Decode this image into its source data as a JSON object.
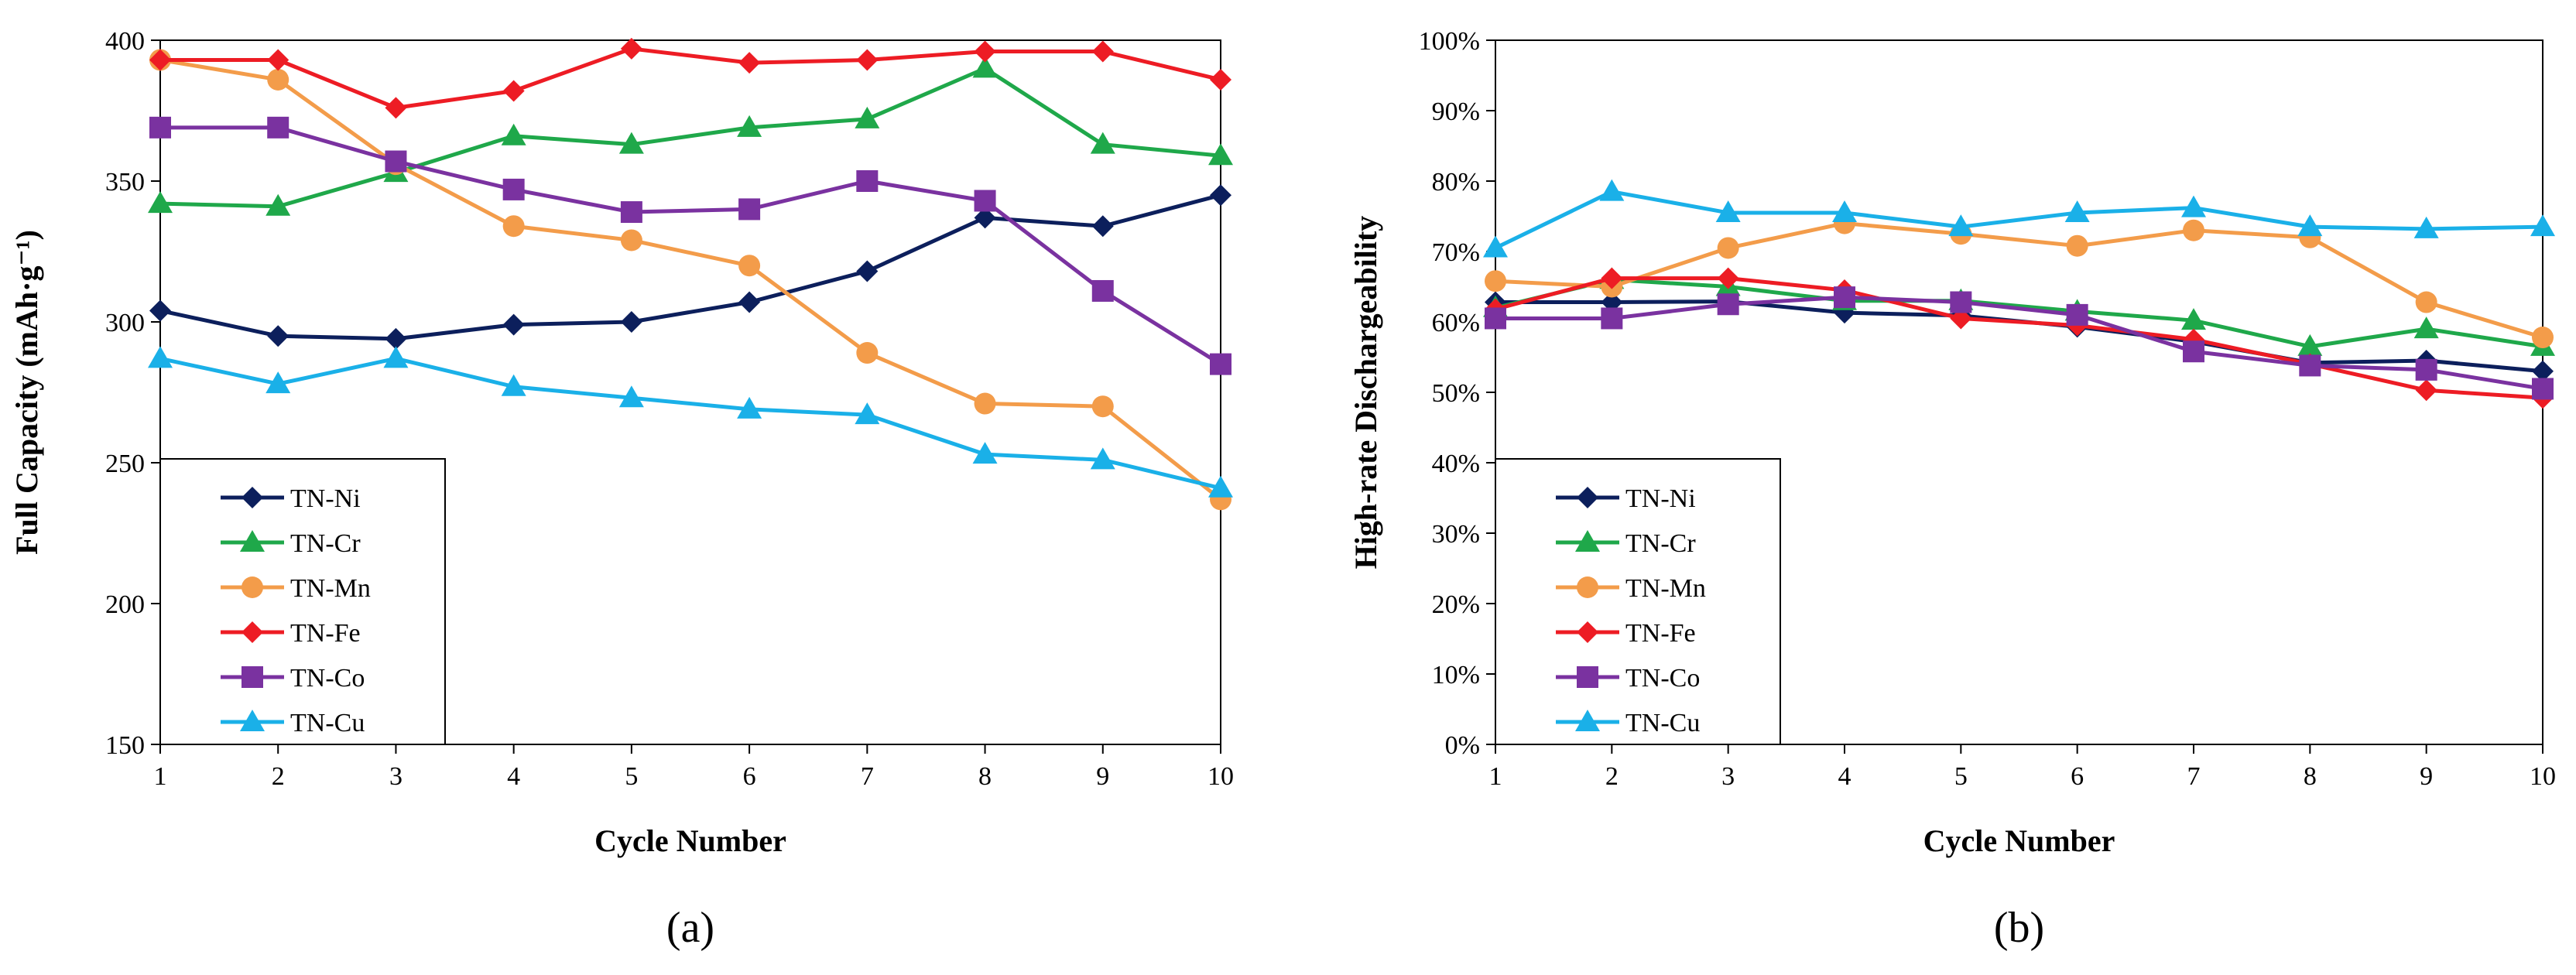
{
  "chart_data": [
    {
      "type": "line",
      "panel_label": "(a)",
      "xlabel": "Cycle Number",
      "ylabel": "Full Capacity (mAh·g⁻¹)",
      "x": [
        1,
        2,
        3,
        4,
        5,
        6,
        7,
        8,
        9,
        10
      ],
      "xlim": [
        1,
        10
      ],
      "ylim": [
        150,
        400
      ],
      "y_ticks": [
        150,
        200,
        250,
        300,
        350,
        400
      ],
      "y_tick_labels": [
        "150",
        "200",
        "250",
        "300",
        "350",
        "400"
      ],
      "grid": false,
      "legend_position": "bottom-left",
      "series": [
        {
          "name": "TN-Ni",
          "color": "#0c1f5c",
          "marker": "diamond",
          "values": [
            304,
            295,
            294,
            299,
            300,
            307,
            318,
            337,
            334,
            345
          ]
        },
        {
          "name": "TN-Cr",
          "color": "#1fa84a",
          "marker": "triangle",
          "values": [
            342,
            341,
            353,
            366,
            363,
            369,
            372,
            390,
            363,
            359
          ]
        },
        {
          "name": "TN-Mn",
          "color": "#f39c4a",
          "marker": "circle",
          "values": [
            393,
            386,
            356,
            334,
            329,
            320,
            289,
            271,
            270,
            237
          ]
        },
        {
          "name": "TN-Fe",
          "color": "#ed1c24",
          "marker": "diamond",
          "values": [
            393,
            393,
            376,
            382,
            397,
            392,
            393,
            396,
            396,
            386
          ]
        },
        {
          "name": "TN-Co",
          "color": "#7a32a0",
          "marker": "square",
          "values": [
            369,
            369,
            357,
            347,
            339,
            340,
            350,
            343,
            311,
            285
          ]
        },
        {
          "name": "TN-Cu",
          "color": "#1ab0e8",
          "marker": "triangle",
          "values": [
            287,
            278,
            287,
            277,
            273,
            269,
            267,
            253,
            251,
            241
          ]
        }
      ]
    },
    {
      "type": "line",
      "panel_label": "(b)",
      "xlabel": "Cycle Number",
      "ylabel": "High-rate Dischargeability",
      "x": [
        1,
        2,
        3,
        4,
        5,
        6,
        7,
        8,
        9,
        10
      ],
      "xlim": [
        1,
        10
      ],
      "ylim": [
        0,
        100
      ],
      "y_ticks": [
        0,
        10,
        20,
        30,
        40,
        50,
        60,
        70,
        80,
        90,
        100
      ],
      "y_tick_labels": [
        "0%",
        "10%",
        "20%",
        "30%",
        "40%",
        "50%",
        "60%",
        "70%",
        "80%",
        "90%",
        "100%"
      ],
      "grid": false,
      "legend_position": "bottom-left",
      "series": [
        {
          "name": "TN-Ni",
          "color": "#0c1f5c",
          "marker": "diamond",
          "values": [
            62.8,
            62.8,
            62.9,
            61.3,
            60.9,
            59.3,
            57.2,
            54.2,
            54.5,
            53.0
          ]
        },
        {
          "name": "TN-Cr",
          "color": "#1fa84a",
          "marker": "triangle",
          "values": [
            62.0,
            66.0,
            65.0,
            63.0,
            63.0,
            61.5,
            60.2,
            56.5,
            59.0,
            56.5
          ]
        },
        {
          "name": "TN-Mn",
          "color": "#f39c4a",
          "marker": "circle",
          "values": [
            65.8,
            65.0,
            70.5,
            74.0,
            72.5,
            70.8,
            73.0,
            72.0,
            62.8,
            57.8
          ]
        },
        {
          "name": "TN-Fe",
          "color": "#ed1c24",
          "marker": "diamond",
          "values": [
            61.8,
            66.2,
            66.2,
            64.5,
            60.5,
            59.5,
            57.5,
            54.0,
            50.3,
            49.2
          ]
        },
        {
          "name": "TN-Co",
          "color": "#7a32a0",
          "marker": "square",
          "values": [
            60.5,
            60.5,
            62.5,
            63.5,
            62.8,
            61.0,
            55.8,
            53.8,
            53.2,
            50.5
          ]
        },
        {
          "name": "TN-Cu",
          "color": "#1ab0e8",
          "marker": "triangle",
          "values": [
            70.5,
            78.5,
            75.5,
            75.5,
            73.5,
            75.5,
            76.2,
            73.5,
            73.2,
            73.5
          ]
        }
      ]
    }
  ]
}
